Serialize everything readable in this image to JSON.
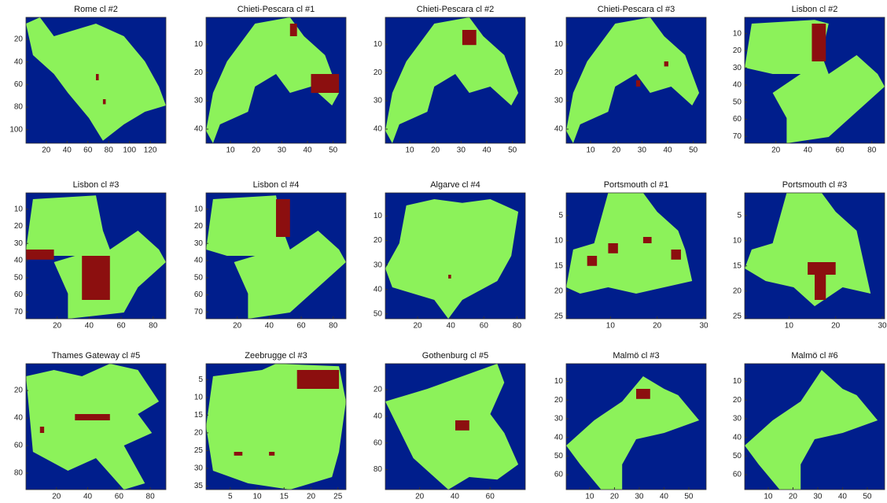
{
  "chart_data": [
    {
      "type": "image",
      "title": "Rome cl #2",
      "xlim": [
        0.5,
        135
      ],
      "ylim": [
        0.5,
        112
      ],
      "xticks": [
        20,
        40,
        60,
        80,
        100,
        120
      ],
      "yticks": [
        20,
        40,
        60,
        80,
        100
      ]
    },
    {
      "type": "image",
      "title": "Chieti-Pescara cl #1",
      "xlim": [
        0.5,
        55
      ],
      "ylim": [
        0.5,
        45
      ],
      "xticks": [
        10,
        20,
        30,
        40,
        50
      ],
      "yticks": [
        10,
        20,
        30,
        40
      ]
    },
    {
      "type": "image",
      "title": "Chieti-Pescara cl #2",
      "xlim": [
        0.5,
        55
      ],
      "ylim": [
        0.5,
        45
      ],
      "xticks": [
        10,
        20,
        30,
        40,
        50
      ],
      "yticks": [
        10,
        20,
        30,
        40
      ]
    },
    {
      "type": "image",
      "title": "Chieti-Pescara cl #3",
      "xlim": [
        0.5,
        55
      ],
      "ylim": [
        0.5,
        45
      ],
      "xticks": [
        10,
        20,
        30,
        40,
        50
      ],
      "yticks": [
        10,
        20,
        30,
        40
      ]
    },
    {
      "type": "image",
      "title": "Lisbon cl #2",
      "xlim": [
        0.5,
        88
      ],
      "ylim": [
        0.5,
        74
      ],
      "xticks": [
        20,
        40,
        60,
        80
      ],
      "yticks": [
        10,
        20,
        30,
        40,
        50,
        60,
        70
      ]
    },
    {
      "type": "image",
      "title": "Lisbon cl #3",
      "xlim": [
        0.5,
        88
      ],
      "ylim": [
        0.5,
        74
      ],
      "xticks": [
        20,
        40,
        60,
        80
      ],
      "yticks": [
        10,
        20,
        30,
        40,
        50,
        60,
        70
      ]
    },
    {
      "type": "image",
      "title": "Lisbon cl #4",
      "xlim": [
        0.5,
        88
      ],
      "ylim": [
        0.5,
        74
      ],
      "xticks": [
        20,
        40,
        60,
        80
      ],
      "yticks": [
        10,
        20,
        30,
        40,
        50,
        60,
        70
      ]
    },
    {
      "type": "image",
      "title": "Algarve cl #4",
      "xlim": [
        0.5,
        85
      ],
      "ylim": [
        0.5,
        52
      ],
      "xticks": [
        20,
        40,
        60,
        80
      ],
      "yticks": [
        10,
        20,
        30,
        40,
        50
      ]
    },
    {
      "type": "image",
      "title": "Portsmouth cl #1",
      "xlim": [
        0.5,
        30.5
      ],
      "ylim": [
        0.5,
        25.5
      ],
      "xticks": [
        10,
        20,
        30
      ],
      "yticks": [
        5,
        10,
        15,
        20,
        25
      ]
    },
    {
      "type": "image",
      "title": "Portsmouth cl #3",
      "xlim": [
        0.5,
        30.5
      ],
      "ylim": [
        0.5,
        25.5
      ],
      "xticks": [
        10,
        20,
        30
      ],
      "yticks": [
        5,
        10,
        15,
        20,
        25
      ]
    },
    {
      "type": "image",
      "title": "Thames Gateway cl #5",
      "xlim": [
        0.5,
        90
      ],
      "ylim": [
        0.5,
        92
      ],
      "xticks": [
        20,
        40,
        60,
        80
      ],
      "yticks": [
        20,
        40,
        60,
        80
      ]
    },
    {
      "type": "image",
      "title": "Zeebrugge cl #3",
      "xlim": [
        0.5,
        26.5
      ],
      "ylim": [
        0.5,
        36
      ],
      "xticks": [
        5,
        10,
        15,
        20,
        25
      ],
      "yticks": [
        5,
        10,
        15,
        20,
        25,
        30,
        35
      ]
    },
    {
      "type": "image",
      "title": "Gothenburg cl #5",
      "xlim": [
        0.5,
        80
      ],
      "ylim": [
        0.5,
        95
      ],
      "xticks": [
        20,
        40,
        60
      ],
      "yticks": [
        20,
        40,
        60,
        80
      ]
    },
    {
      "type": "image",
      "title": "Malmö cl #3",
      "xlim": [
        0.5,
        57
      ],
      "ylim": [
        0.5,
        68
      ],
      "xticks": [
        10,
        20,
        30,
        40,
        50
      ],
      "yticks": [
        10,
        20,
        30,
        40,
        50,
        60
      ]
    },
    {
      "type": "image",
      "title": "Malmö cl #6",
      "xlim": [
        0.5,
        57
      ],
      "ylim": [
        0.5,
        68
      ],
      "xticks": [
        10,
        20,
        30,
        40,
        50
      ],
      "yticks": [
        10,
        20,
        30,
        40,
        50,
        60
      ]
    }
  ]
}
